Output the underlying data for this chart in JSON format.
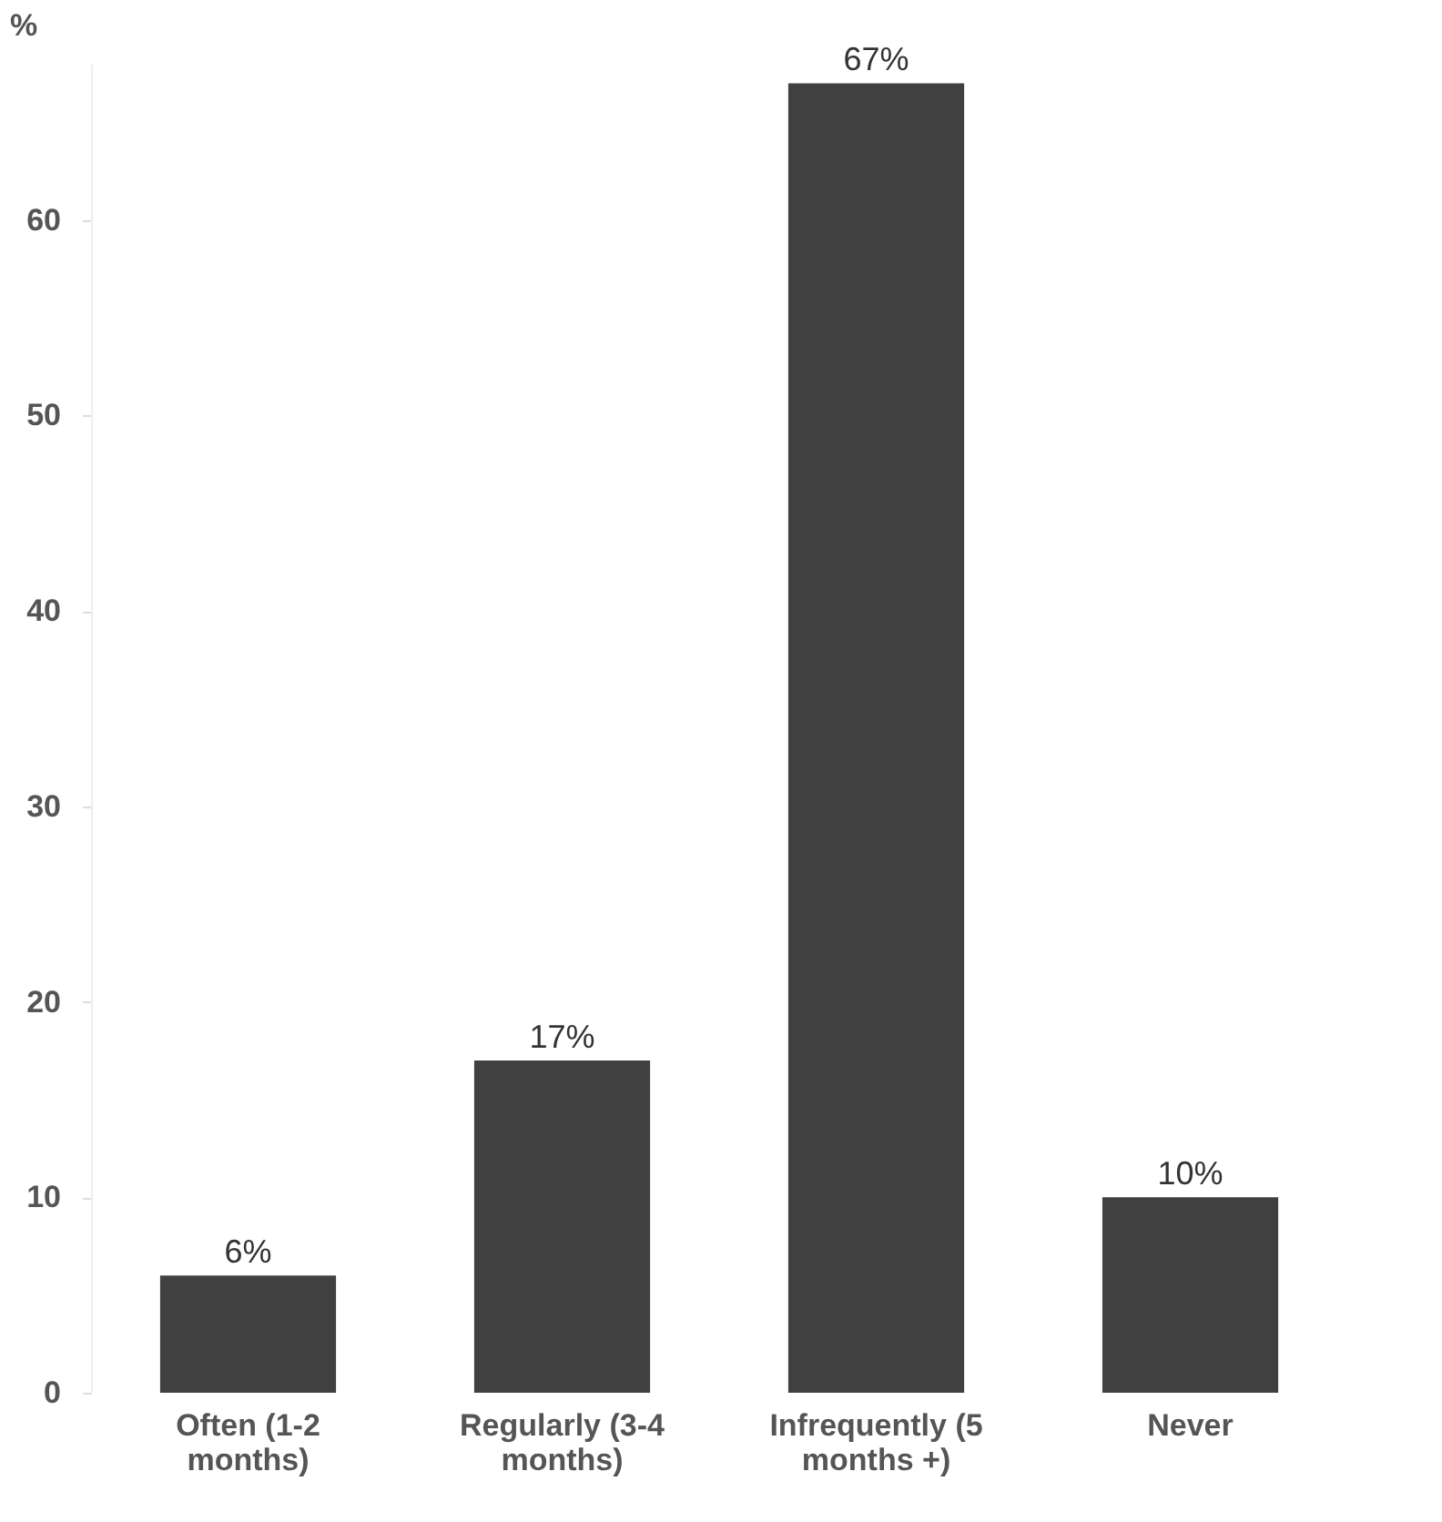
{
  "chart_data": {
    "type": "bar",
    "ylabel": "%",
    "categories": [
      "Often (1-2 months)",
      "Regularly (3-4 months)",
      "Infrequently (5 months +)",
      "Never"
    ],
    "values": [
      6,
      17,
      67,
      10
    ],
    "color": "#404040",
    "value_labels": [
      "6%",
      "17%",
      "67%",
      "10%"
    ],
    "ylim": [
      0,
      68
    ],
    "yticks": [
      0,
      10,
      20,
      30,
      40,
      50,
      60
    ],
    "grid": false
  }
}
